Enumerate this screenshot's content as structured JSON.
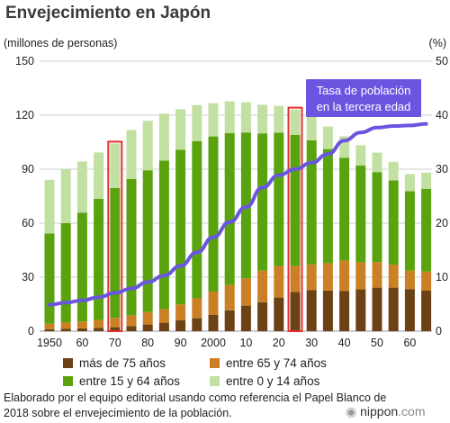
{
  "header": {
    "title": "Envejecimiento en Japón"
  },
  "source_note": "Elaborado por el equipo editorial usando como referencia el Papel Blanco de 2018 sobre el envejecimiento de la población.",
  "brand": {
    "text": "nippon",
    "suffix": ".com"
  },
  "chart_data": {
    "type": "bar",
    "stacked": true,
    "left_axis_label": "(millones de personas)",
    "right_axis_label": "(%)",
    "left_ticks": [
      0,
      30,
      60,
      90,
      120,
      150
    ],
    "right_ticks": [
      0,
      10,
      20,
      30,
      40,
      50
    ],
    "ylim_left": [
      0,
      150
    ],
    "ylim_right": [
      0,
      50
    ],
    "x_tick_labels": [
      "1950",
      "60",
      "70",
      "80",
      "90",
      "2000",
      "10",
      "20",
      "30",
      "40",
      "50",
      "60"
    ],
    "x_years": [
      1950,
      1955,
      1960,
      1965,
      1970,
      1975,
      1980,
      1985,
      1990,
      1995,
      2000,
      2005,
      2010,
      2015,
      2020,
      2025,
      2030,
      2035,
      2040,
      2045,
      2050,
      2055,
      2060,
      2065
    ],
    "highlighted_years": [
      1970,
      2025
    ],
    "series": [
      {
        "name": "más de 75 años",
        "color": "#6b4214",
        "values": [
          1.1,
          1.4,
          1.6,
          1.9,
          2.2,
          2.8,
          3.7,
          4.7,
          6.0,
          7.2,
          9.0,
          11.6,
          14.2,
          16.1,
          18.7,
          21.8,
          22.9,
          22.6,
          22.4,
          23.3,
          24.2,
          24.2,
          23.4,
          22.5
        ]
      },
      {
        "name": "entre 65 y 74 años",
        "color": "#cc8025",
        "values": [
          3.0,
          3.4,
          3.8,
          4.3,
          5.2,
          6.0,
          6.9,
          7.6,
          8.9,
          11.1,
          13.0,
          14.1,
          15.2,
          17.5,
          17.5,
          14.4,
          14.3,
          15.2,
          16.8,
          15.0,
          14.2,
          12.8,
          10.2,
          10.6
        ]
      },
      {
        "name": "entre 15 y 64 años",
        "color": "#5aa30f",
        "values": [
          50.2,
          55.2,
          60.5,
          67.4,
          72.1,
          75.8,
          78.8,
          82.5,
          85.9,
          87.3,
          86.2,
          84.4,
          81.0,
          76.3,
          74.1,
          72.9,
          68.8,
          63.4,
          57.2,
          53.7,
          50.0,
          46.8,
          44.2,
          46.0
        ]
      },
      {
        "name": "entre 0 y 14 años",
        "color": "#c3e0a3",
        "values": [
          29.8,
          30.0,
          28.4,
          25.7,
          24.8,
          27.2,
          27.5,
          26.0,
          22.5,
          20.0,
          18.5,
          17.6,
          16.8,
          15.9,
          14.9,
          14.1,
          13.2,
          12.5,
          11.9,
          11.3,
          10.8,
          10.3,
          9.5,
          8.9
        ]
      }
    ],
    "line_series": {
      "name": "Tasa de población en la tercera edad",
      "axis": "right",
      "color": "#6a55e0",
      "values": [
        4.9,
        5.3,
        5.7,
        6.3,
        7.1,
        7.9,
        9.1,
        10.3,
        12.1,
        14.6,
        17.4,
        20.2,
        23.0,
        26.6,
        28.9,
        30.0,
        31.2,
        32.8,
        35.3,
        36.8,
        37.7,
        38.0,
        38.1,
        38.4
      ]
    },
    "annotation": {
      "line1": "Tasa de población",
      "line2": "en la tercera edad",
      "color": "#6a55e0"
    },
    "grid": true
  }
}
